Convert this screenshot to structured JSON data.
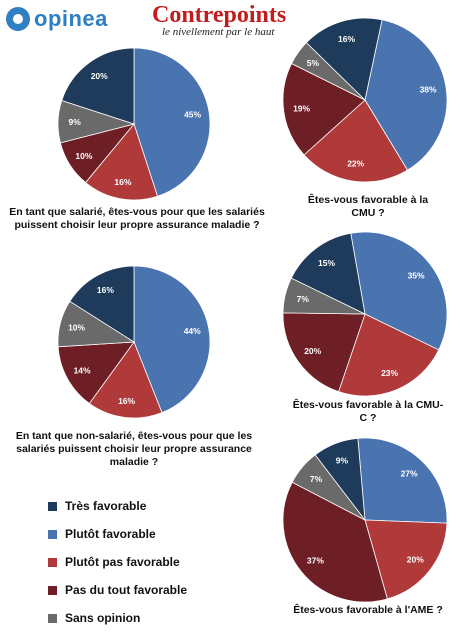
{
  "header": {
    "logo_left": "opinea",
    "logo_right_title": "Contrepoints",
    "logo_right_tagline": "le nivellement par le haut"
  },
  "legend": [
    {
      "label": "Très favorable",
      "color": "#1f3b5c"
    },
    {
      "label": "Plutôt favorable",
      "color": "#4a74b0"
    },
    {
      "label": "Plutôt pas favorable",
      "color": "#b03a3a"
    },
    {
      "label": "Pas du tout favorable",
      "color": "#6e1e25"
    },
    {
      "label": "Sans opinion",
      "color": "#6a6a6a"
    }
  ],
  "chart_data": [
    {
      "type": "pie",
      "title": "En tant que salarié, êtes-vous pour que les salariés puissent choisir leur propre assurance maladie ?",
      "categories": [
        "Plutôt favorable",
        "Plutôt pas favorable",
        "Pas du tout favorable",
        "Sans opinion",
        "Très favorable"
      ],
      "values": [
        45,
        16,
        10,
        9,
        20
      ],
      "labels": [
        "45%",
        "16%",
        "10%",
        "9%",
        "20%"
      ]
    },
    {
      "type": "pie",
      "title": "Êtes-vous favorable à la CMU ?",
      "categories": [
        "Plutôt favorable",
        "Plutôt pas favorable",
        "Pas du tout favorable",
        "Sans opinion",
        "Très favorable"
      ],
      "values": [
        38,
        22,
        19,
        5,
        16
      ],
      "labels": [
        "38%",
        "22%",
        "19%",
        "5%",
        "16%"
      ]
    },
    {
      "type": "pie",
      "title": "En tant que non-salarié, êtes-vous pour que les salariés puissent choisir leur propre assurance maladie ?",
      "categories": [
        "Plutôt favorable",
        "Plutôt pas favorable",
        "Pas du tout favorable",
        "Sans opinion",
        "Très favorable"
      ],
      "values": [
        44,
        16,
        14,
        10,
        16
      ],
      "labels": [
        "44%",
        "16%",
        "14%",
        "10%",
        "16%"
      ]
    },
    {
      "type": "pie",
      "title": "Êtes-vous favorable à la CMU-C ?",
      "categories": [
        "Plutôt favorable",
        "Plutôt pas favorable",
        "Pas du tout favorable",
        "Sans opinion",
        "Très favorable"
      ],
      "values": [
        35,
        23,
        20,
        7,
        15
      ],
      "labels": [
        "35%",
        "23%",
        "20%",
        "7%",
        "15%"
      ]
    },
    {
      "type": "pie",
      "title": "Êtes-vous favorable à l'AME ?",
      "categories": [
        "Plutôt favorable",
        "Plutôt pas favorable",
        "Pas du tout favorable",
        "Sans opinion",
        "Très favorable"
      ],
      "values": [
        27,
        20,
        37,
        7,
        9
      ],
      "labels": [
        "27%",
        "20%",
        "37%",
        "7%",
        "9%"
      ]
    }
  ],
  "questions": [
    "En tant que salarié, êtes-vous pour que les salariés puissent choisir leur propre assurance maladie ?",
    "Êtes-vous favorable à la CMU ?",
    "En tant que non-salarié, êtes-vous pour que les salariés puissent choisir leur propre assurance maladie ?",
    "Êtes-vous favorable à la CMU-C ?",
    "Êtes-vous favorable à l'AME ?"
  ]
}
